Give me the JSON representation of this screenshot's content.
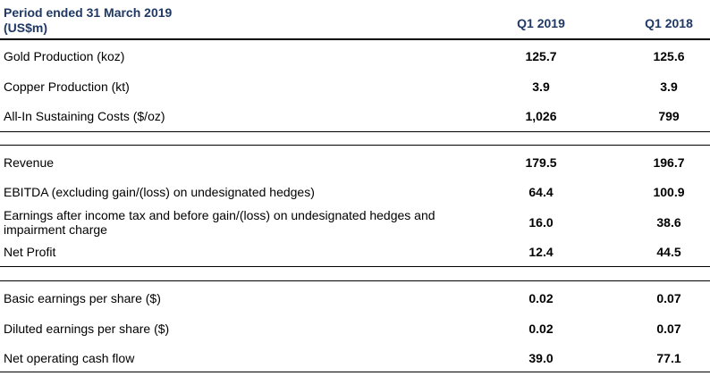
{
  "header": {
    "title_line1": "Period ended 31 March 2019",
    "title_line2": "(US$m)",
    "col_a": "Q1 2019",
    "col_b": "Q1 2018"
  },
  "section1": [
    {
      "label": "Gold Production (koz)",
      "a": "125.7",
      "b": "125.6"
    },
    {
      "label": "Copper Production (kt)",
      "a": "3.9",
      "b": "3.9"
    },
    {
      "label": "All-In Sustaining Costs ($/oz)",
      "a": "1,026",
      "b": "799"
    }
  ],
  "section2": [
    {
      "label": "Revenue",
      "a": "179.5",
      "b": "196.7"
    },
    {
      "label": "EBITDA (excluding gain/(loss) on undesignated hedges)",
      "a": "64.4",
      "b": "100.9"
    },
    {
      "label_line1": "Earnings after income tax and before gain/(loss) on undesignated hedges and",
      "label_line2": "impairment charge",
      "a": "16.0",
      "b": "38.6"
    },
    {
      "label": "Net Profit",
      "a": "12.4",
      "b": "44.5"
    }
  ],
  "section3": [
    {
      "label": "Basic earnings per share ($)",
      "a": "0.02",
      "b": "0.07"
    },
    {
      "label": "Diluted earnings per share ($)",
      "a": "0.02",
      "b": "0.07"
    },
    {
      "label": "Net operating cash flow",
      "a": "39.0",
      "b": "77.1"
    }
  ]
}
